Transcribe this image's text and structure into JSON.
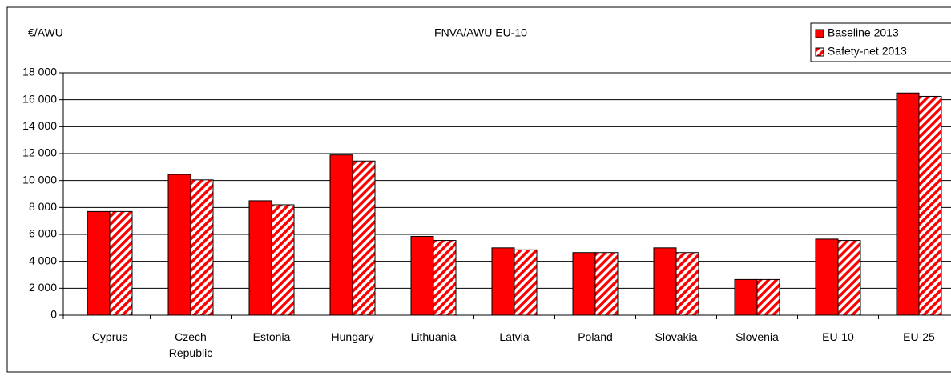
{
  "chart_data": {
    "type": "bar",
    "title": "FNVA/AWU EU-10",
    "y_axis_label": "€/AWU",
    "categories": [
      "Cyprus",
      "Czech Republic",
      "Estonia",
      "Hungary",
      "Lithuania",
      "Latvia",
      "Poland",
      "Slovakia",
      "Slovenia",
      "EU-10",
      "EU-25"
    ],
    "series": [
      {
        "name": "Baseline 2013",
        "color": "#ff0000",
        "values": [
          7700,
          10450,
          8500,
          11900,
          5850,
          5000,
          4650,
          5000,
          2650,
          5650,
          16500
        ]
      },
      {
        "name": "Safety-net 2013",
        "color": "#ff0000",
        "hatched": true,
        "values": [
          7700,
          10050,
          8200,
          11450,
          5550,
          4850,
          4650,
          4650,
          2650,
          5550,
          16250
        ]
      }
    ],
    "ylim": [
      0,
      18000
    ],
    "yticks": [
      0,
      {
        "value": 2000,
        "label": "2 000"
      },
      {
        "value": 4000,
        "label": "4 000"
      },
      {
        "value": 6000,
        "label": "6 000"
      },
      {
        "value": 8000,
        "label": "8 000"
      },
      {
        "value": 10000,
        "label": "10 000"
      },
      {
        "value": 12000,
        "label": "12 000"
      },
      {
        "value": 14000,
        "label": "14 000"
      },
      {
        "value": 16000,
        "label": "16 000"
      },
      {
        "value": 18000,
        "label": "18 000"
      }
    ],
    "grid": true,
    "legend": "top-right"
  }
}
